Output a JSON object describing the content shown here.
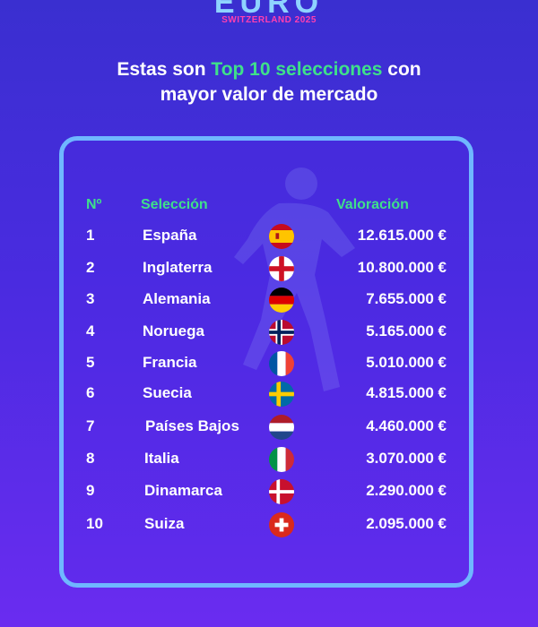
{
  "brand": {
    "logo_text": "EURO",
    "subtitle": "SWITZERLAND 2025"
  },
  "headline": {
    "line1_before": "Estas son ",
    "line1_highlight": "Top 10 selecciones",
    "line1_after": " con",
    "line2": "mayor valor de mercado"
  },
  "table": {
    "headers": {
      "rank": "Nº",
      "team": "Selección",
      "value": "Valoración"
    },
    "rows": [
      {
        "rank": "1",
        "team": "España",
        "flag": "spain-flag-icon",
        "value": "12.615.000 €"
      },
      {
        "rank": "2",
        "team": "Inglaterra",
        "flag": "england-flag-icon",
        "value": "10.800.000 €"
      },
      {
        "rank": "3",
        "team": "Alemania",
        "flag": "germany-flag-icon",
        "value": "7.655.000 €"
      },
      {
        "rank": "4",
        "team": "Noruega",
        "flag": "norway-flag-icon",
        "value": "5.165.000 €"
      },
      {
        "rank": "5",
        "team": "Francia",
        "flag": "france-flag-icon",
        "value": "5.010.000 €"
      },
      {
        "rank": "6",
        "team": "Suecia",
        "flag": "sweden-flag-icon",
        "value": "4.815.000 €"
      },
      {
        "rank": "7",
        "team": "Países Bajos",
        "flag": "netherlands-flag-icon",
        "value": "4.460.000 €"
      },
      {
        "rank": "8",
        "team": "Italia",
        "flag": "italy-flag-icon",
        "value": "3.070.000 €"
      },
      {
        "rank": "9",
        "team": "Dinamarca",
        "flag": "denmark-flag-icon",
        "value": "2.290.000 €"
      },
      {
        "rank": "10",
        "team": "Suiza",
        "flag": "switzerland-flag-icon",
        "value": "2.095.000 €"
      }
    ]
  },
  "colors": {
    "accent": "#3fe08a",
    "card_border": "#6fb7ff",
    "background": "#4a2be0"
  }
}
